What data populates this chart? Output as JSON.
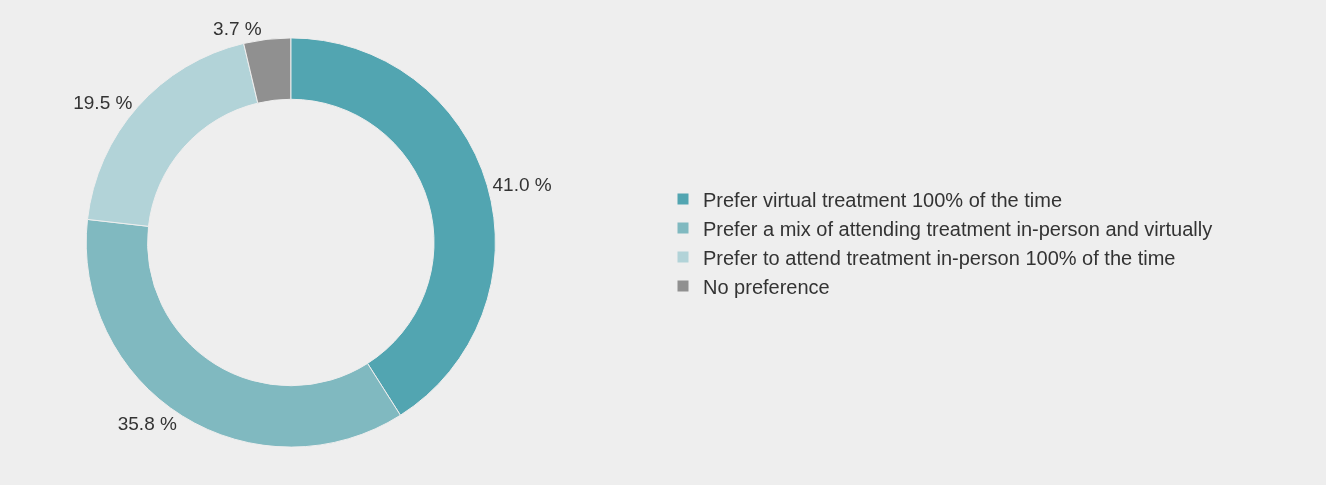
{
  "chart_data": {
    "type": "donut",
    "categories": [
      "Prefer virtual treatment 100% of the time",
      "Prefer a mix of attending treatment in-person and virtually",
      "Prefer to attend treatment in-person 100% of the time",
      "No preference"
    ],
    "values": [
      41.0,
      35.8,
      19.5,
      3.7
    ],
    "colors": [
      "#52a5b1",
      "#80b9c0",
      "#b2d3d8",
      "#909090"
    ],
    "value_labels": [
      "41.0 %",
      "35.8 %",
      "19.5 %",
      "3.7 %"
    ],
    "legend": "right"
  }
}
